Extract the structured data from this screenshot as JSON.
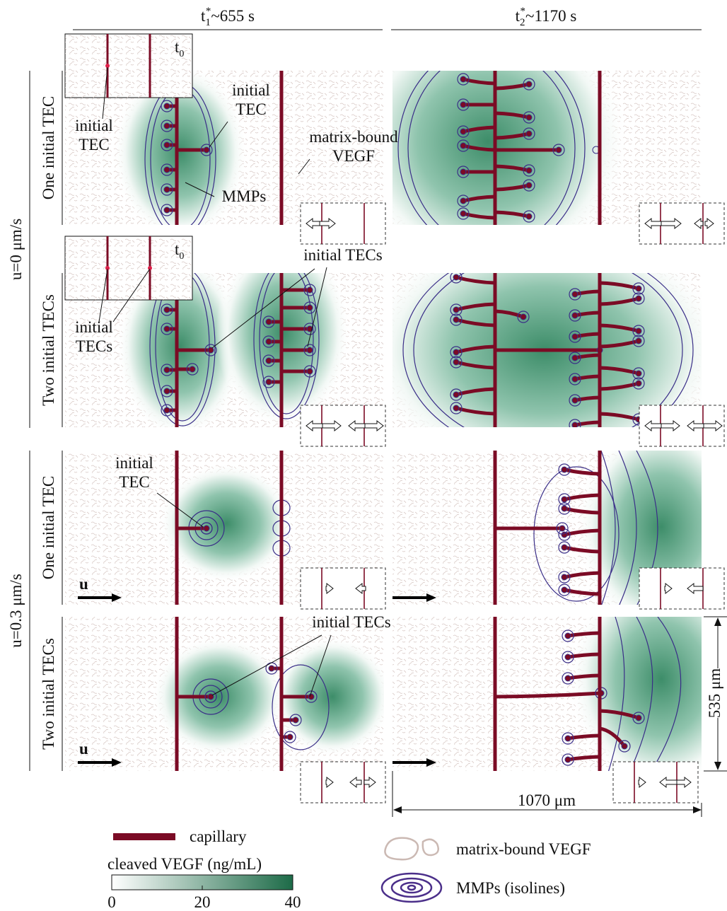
{
  "header": {
    "columns": [
      {
        "base": "t",
        "sub": "1",
        "sup": "*",
        "rest": "~655 s"
      },
      {
        "base": "t",
        "sub": "2",
        "sup": "*",
        "rest": "~1170 s"
      }
    ]
  },
  "groups": [
    {
      "label": "u=0 μm/s",
      "rows": [
        "One initial TEC",
        "Two initial TECs"
      ]
    },
    {
      "label": "u=0.3 μm/s",
      "rows": [
        "One initial TEC",
        "Two initial TECs"
      ]
    }
  ],
  "insets": [
    {
      "base": "t",
      "sub": "0"
    },
    {
      "base": "t",
      "sub": "0"
    }
  ],
  "annotations": [
    {
      "lines": [
        "initial",
        "TEC"
      ]
    },
    {
      "lines": [
        "initial",
        "TEC"
      ]
    },
    {
      "lines": [
        "matrix-bound",
        "VEGF"
      ]
    },
    {
      "lines": [
        "MMPs"
      ]
    },
    {
      "lines": [
        "initial",
        "TECs"
      ]
    },
    {
      "lines": [
        "initial TECs"
      ]
    },
    {
      "lines": [
        "initial",
        "TEC"
      ]
    },
    {
      "lines": [
        "initial TECs"
      ]
    }
  ],
  "flow_labels": [
    "u",
    "u"
  ],
  "dimensions": {
    "height": "535 μm",
    "width": "1070 μm"
  },
  "legend": {
    "capillary": "capillary",
    "colorbar": {
      "title": "cleaved VEGF (ng/mL)",
      "range": [
        0,
        40
      ],
      "ticks": [
        0,
        20,
        40
      ]
    },
    "matrix": "matrix-bound VEGF",
    "mmps": "MMPs (isolines)"
  }
}
